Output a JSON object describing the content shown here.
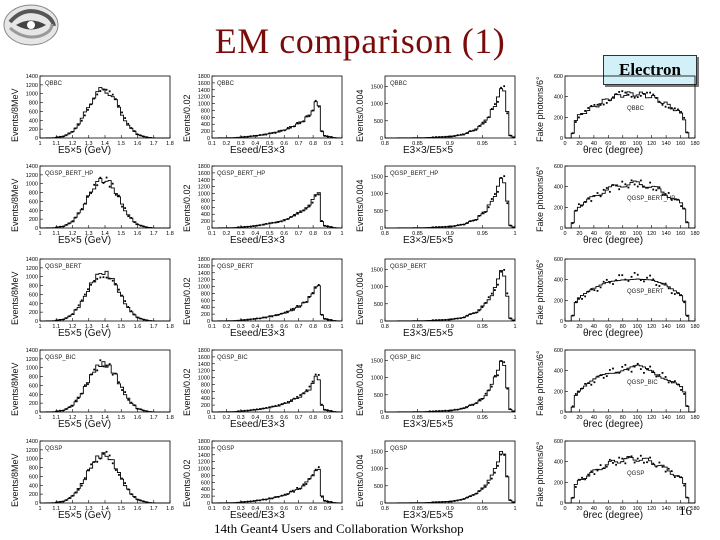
{
  "title": "EM comparison (1)",
  "badge": "Electron",
  "footer": "14th Geant4 Users and Collaboration Workshop",
  "page_number": "16",
  "logo": {
    "name": "institute-logo"
  },
  "chart_data": {
    "type": "grid",
    "rows": [
      "QBBC",
      "QGSP_BERT_HP",
      "QGSP_BERT",
      "QGSP_BIC",
      "QGSP"
    ],
    "columns": [
      {
        "type": "line",
        "xlabel": "E5×5 (GeV)",
        "ylabel": "Events/8MeV",
        "xlim": [
          1.0,
          1.8
        ],
        "xticks": [
          "1",
          "1.1",
          "1.2",
          "1.3",
          "1.4",
          "1.5",
          "1.6",
          "1.7",
          "1.8"
        ],
        "ylim": [
          0,
          1400
        ],
        "yticks": [
          "0",
          "200",
          "400",
          "600",
          "800",
          "1000",
          "1200",
          "1400"
        ],
        "profile": [
          [
            1.0,
            0
          ],
          [
            1.08,
            5
          ],
          [
            1.15,
            40
          ],
          [
            1.2,
            150
          ],
          [
            1.25,
            380
          ],
          [
            1.3,
            720
          ],
          [
            1.34,
            980
          ],
          [
            1.38,
            1100
          ],
          [
            1.42,
            1050
          ],
          [
            1.46,
            870
          ],
          [
            1.5,
            560
          ],
          [
            1.55,
            250
          ],
          [
            1.6,
            80
          ],
          [
            1.65,
            20
          ],
          [
            1.7,
            3
          ],
          [
            1.8,
            0
          ]
        ]
      },
      {
        "type": "line",
        "xlabel": "Eseed/E3×3",
        "ylabel": "Events/0.02",
        "xlim": [
          0.1,
          1.0
        ],
        "xticks": [
          "0.1",
          "0.2",
          "0.3",
          "0.4",
          "0.5",
          "0.6",
          "0.7",
          "0.8",
          "0.9",
          "1"
        ],
        "ylim": [
          0,
          1800
        ],
        "yticks": [
          "0",
          "200",
          "400",
          "600",
          "800",
          "1000",
          "1200",
          "1400",
          "1600",
          "1800"
        ],
        "profile": [
          [
            0.1,
            0
          ],
          [
            0.25,
            10
          ],
          [
            0.35,
            40
          ],
          [
            0.45,
            90
          ],
          [
            0.55,
            170
          ],
          [
            0.62,
            260
          ],
          [
            0.68,
            380
          ],
          [
            0.74,
            520
          ],
          [
            0.78,
            700
          ],
          [
            0.81,
            900
          ],
          [
            0.83,
            1150
          ],
          [
            0.85,
            800
          ],
          [
            0.86,
            200
          ],
          [
            0.88,
            60
          ],
          [
            0.95,
            10
          ],
          [
            1.0,
            0
          ]
        ]
      },
      {
        "type": "line",
        "xlabel": "E3×3/E5×5",
        "ylabel": "Events/0.004",
        "xlim": [
          0.8,
          1.0
        ],
        "xticks": [
          "0.8",
          "0.85",
          "0.9",
          "0.95",
          "1"
        ],
        "ylim": [
          0,
          1800
        ],
        "yticks": [
          "0",
          "500",
          "1000",
          "1500"
        ],
        "profile": [
          [
            0.8,
            0
          ],
          [
            0.86,
            10
          ],
          [
            0.9,
            40
          ],
          [
            0.92,
            100
          ],
          [
            0.94,
            250
          ],
          [
            0.955,
            500
          ],
          [
            0.965,
            800
          ],
          [
            0.975,
            1200
          ],
          [
            0.98,
            1550
          ],
          [
            0.985,
            1300
          ],
          [
            0.99,
            400
          ],
          [
            0.993,
            60
          ],
          [
            1.0,
            0
          ]
        ]
      },
      {
        "type": "line",
        "xlabel": "θrec (degree)",
        "ylabel": "Fake photons/6°",
        "xlim": [
          0,
          180
        ],
        "xticks": [
          "0",
          "20",
          "40",
          "60",
          "80",
          "100",
          "120",
          "140",
          "160",
          "180"
        ],
        "ylim": [
          0,
          600
        ],
        "yticks": [
          "0",
          "200",
          "400",
          "600"
        ],
        "profile": [
          [
            0,
            0
          ],
          [
            10,
            0
          ],
          [
            12,
            140
          ],
          [
            20,
            220
          ],
          [
            40,
            300
          ],
          [
            60,
            380
          ],
          [
            80,
            420
          ],
          [
            100,
            430
          ],
          [
            120,
            400
          ],
          [
            140,
            330
          ],
          [
            160,
            240
          ],
          [
            168,
            150
          ],
          [
            170,
            0
          ],
          [
            180,
            0
          ]
        ]
      }
    ]
  }
}
